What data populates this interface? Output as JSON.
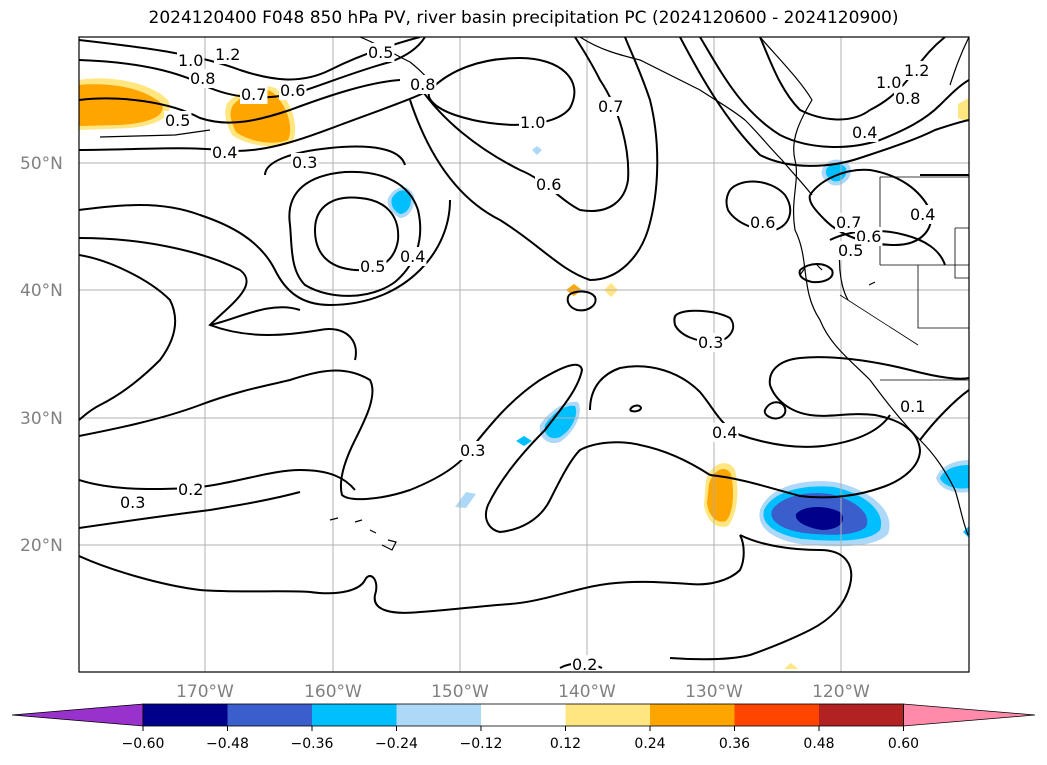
{
  "title": "2024120400 F048 850 hPa PV, river basin precipitation PC (2024120600 - 2024120900)",
  "map": {
    "lat_labels": [
      "50°N",
      "40°N",
      "30°N",
      "20°N"
    ],
    "lon_labels": [
      "170°W",
      "160°W",
      "150°W",
      "140°W",
      "130°W",
      "120°W"
    ],
    "contour_labels": [
      "1.0",
      "1.2",
      "0.8",
      "0.5",
      "0.7",
      "0.6",
      "0.5",
      "0.4",
      "0.3",
      "0.8",
      "1.0",
      "0.7",
      "0.6",
      "0.5",
      "0.4",
      "0.6",
      "1.0",
      "1.2",
      "0.8",
      "0.4",
      "0.7",
      "0.6",
      "0.5",
      "0.3",
      "0.4",
      "0.3",
      "0.2",
      "0.3",
      "0.2",
      "0.1",
      "0.4"
    ],
    "precip_colors": {
      "light_orange": "#ffe680",
      "orange": "#ffa500",
      "light_blue": "#add8f7",
      "deep_sky": "#00bfff",
      "royal": "#3a5fcd",
      "navy": "#00008b"
    }
  },
  "colorbar": {
    "ticks": [
      "−0.60",
      "−0.48",
      "−0.36",
      "−0.24",
      "−0.12",
      "0.12",
      "0.24",
      "0.36",
      "0.48",
      "0.60"
    ],
    "colors": [
      "#9932cc",
      "#00008b",
      "#3a5fcd",
      "#00bfff",
      "#add8f7",
      "#ffffff",
      "#ffe680",
      "#ffa500",
      "#ff4500",
      "#b22222",
      "#ff8aaa"
    ]
  }
}
